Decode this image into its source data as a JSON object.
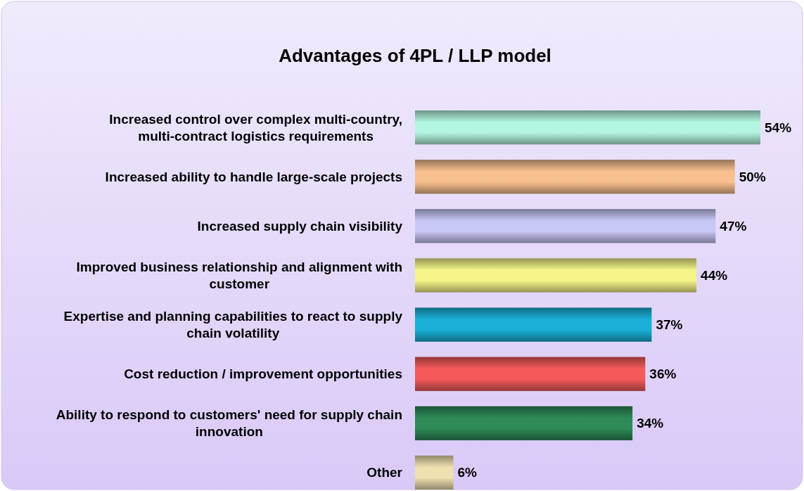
{
  "chart_data": {
    "type": "bar",
    "orientation": "horizontal",
    "title": "Advantages of 4PL / LLP model",
    "categories": [
      "Increased control over complex multi-country, multi-contract logistics requirements",
      "Increased ability to handle large-scale projects",
      "Increased supply chain visibility",
      "Improved business relationship and alignment with customer",
      "Expertise and planning capabilities to react to supply chain volatility",
      "Cost reduction / improvement opportunities",
      "Ability to respond to customers' need for supply chain innovation",
      "Other"
    ],
    "values": [
      54,
      50,
      47,
      44,
      37,
      36,
      34,
      6
    ],
    "colors": [
      "#b3f5e0",
      "#f9c08f",
      "#c8c8f5",
      "#f5f58a",
      "#1ab0d8",
      "#f55a5a",
      "#2e8b57",
      "#f0e0b0"
    ],
    "value_labels": [
      "54%",
      "50%",
      "47%",
      "44%",
      "37%",
      "36%",
      "34%",
      "6%"
    ]
  }
}
